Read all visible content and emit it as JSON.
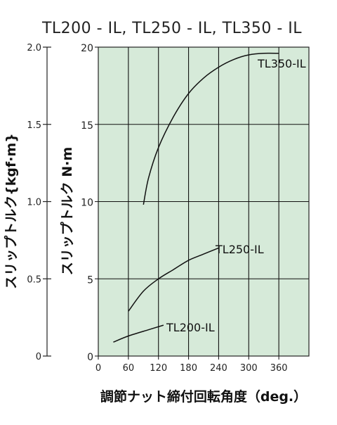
{
  "chart_data": {
    "type": "line",
    "title": "TL200 - IL,  TL250 - IL,  TL350 - IL",
    "xlabel": "調節ナット締付回転角度（deg.）",
    "ylabel": "スリップトルク N·m",
    "ylabel_secondary": "スリップトルク{kgf·m}",
    "x_ticks": [
      "0",
      "60",
      "120",
      "180",
      "240",
      "300",
      "360"
    ],
    "y_ticks": [
      "0",
      "5",
      "10",
      "15",
      "20"
    ],
    "y2_ticks": [
      "0",
      "0.5",
      "1.0",
      "1.5",
      "2.0"
    ],
    "xlim": [
      0,
      420
    ],
    "ylim": [
      0,
      20
    ],
    "y2lim": [
      0,
      2.0
    ],
    "grid": true,
    "plot_background": "#d6ead9",
    "series": [
      {
        "name": "TL200-IL",
        "x": [
          30,
          60,
          100,
          130
        ],
        "y": [
          0.9,
          1.3,
          1.7,
          2.0
        ]
      },
      {
        "name": "TL250-IL",
        "x": [
          60,
          90,
          120,
          150,
          180,
          210,
          240
        ],
        "y": [
          2.9,
          4.2,
          5.0,
          5.6,
          6.2,
          6.6,
          7.0
        ]
      },
      {
        "name": "TL350-IL",
        "x": [
          90,
          100,
          120,
          150,
          180,
          210,
          240,
          270,
          300,
          330,
          360
        ],
        "y": [
          9.8,
          11.5,
          13.5,
          15.5,
          17.0,
          18.0,
          18.7,
          19.2,
          19.5,
          19.6,
          19.6
        ]
      }
    ]
  }
}
